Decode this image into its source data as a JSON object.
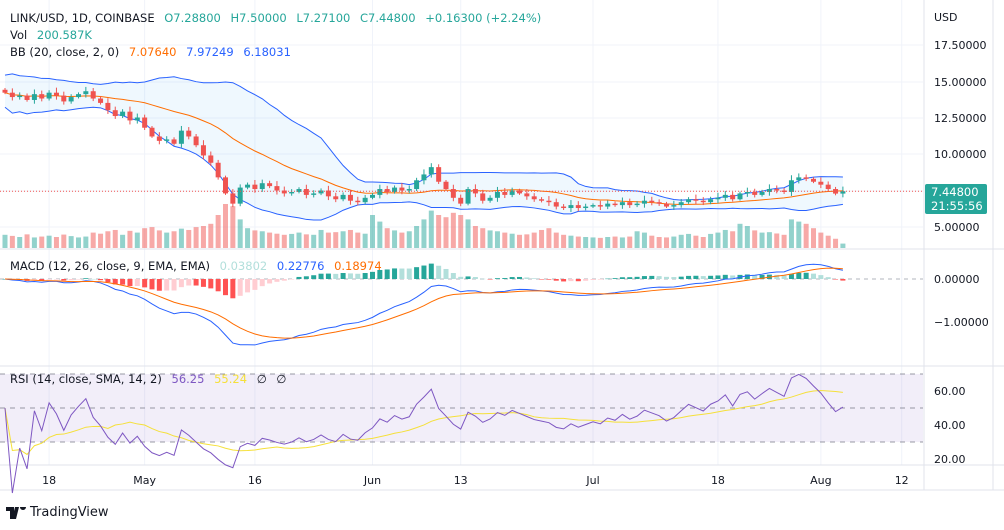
{
  "header": {
    "symbol": "LINK/USD, 1D, COINBASE",
    "open": "O7.28800",
    "high": "H7.50000",
    "low": "L7.27100",
    "close": "C7.44800",
    "change": "+0.16300 (+2.24%)"
  },
  "volume": {
    "label": "Vol",
    "value": "200.587K"
  },
  "bb": {
    "label": "BB (20, close, 2, 0)",
    "basis": "7.07640",
    "upper": "7.97249",
    "lower": "6.18031"
  },
  "macd": {
    "label": "MACD (12, 26, close, 9, EMA, EMA)",
    "hist": "0.03802",
    "macd": "0.22776",
    "signal": "0.18974"
  },
  "rsi": {
    "label": "RSI (14, close, SMA, 14, 2)",
    "rsi": "56.25",
    "sma": "55.24",
    "v3": "∅",
    "v4": "∅"
  },
  "price_axis": {
    "currency": "USD",
    "ticks": [
      "17.50000",
      "15.00000",
      "12.50000",
      "10.00000",
      "5.00000"
    ],
    "last_price": "7.44800",
    "countdown": "21:55:56"
  },
  "macd_axis": {
    "ticks": [
      "0.00000",
      "−1.00000"
    ]
  },
  "rsi_axis": {
    "ticks": [
      "60.00",
      "40.00",
      "20.00"
    ]
  },
  "time_axis": [
    {
      "label": "18",
      "candle": 6
    },
    {
      "label": "May",
      "candle": 19
    },
    {
      "label": "16",
      "candle": 34
    },
    {
      "label": "Jun",
      "candle": 50
    },
    {
      "label": "13",
      "candle": 62
    },
    {
      "label": "Jul",
      "candle": 80
    },
    {
      "label": "18",
      "candle": 97
    },
    {
      "label": "Aug",
      "candle": 111
    },
    {
      "label": "12",
      "candle": 122
    }
  ],
  "brand": "TradingView",
  "colors": {
    "up": "#26a69a",
    "down": "#ef5350",
    "bb_band": "#2962ff",
    "bb_basis": "#ff6d00",
    "macd": "#2962ff",
    "signal": "#ff6d00",
    "rsi": "#7e57c2",
    "rsi_sma": "#f5e03a"
  },
  "chart_data": {
    "type": "candlestick",
    "yrange": [
      4,
      19
    ],
    "closes": [
      14.2,
      13.9,
      14.0,
      13.7,
      14.1,
      13.8,
      14.2,
      14.0,
      13.6,
      13.9,
      14.1,
      14.3,
      13.8,
      13.5,
      13.0,
      12.6,
      12.9,
      12.3,
      12.5,
      11.8,
      11.2,
      10.9,
      11.0,
      10.7,
      11.6,
      11.2,
      10.6,
      9.9,
      9.4,
      8.4,
      7.3,
      6.6,
      7.7,
      7.9,
      7.6,
      8.0,
      7.8,
      7.5,
      7.3,
      7.4,
      7.6,
      7.2,
      7.3,
      7.5,
      7.1,
      6.9,
      7.2,
      6.8,
      6.7,
      7.0,
      7.2,
      7.6,
      7.4,
      7.7,
      7.5,
      7.6,
      8.2,
      8.6,
      9.1,
      8.1,
      7.6,
      7.0,
      6.6,
      7.6,
      7.3,
      6.8,
      7.0,
      7.4,
      7.2,
      7.5,
      7.3,
      7.1,
      6.9,
      6.8,
      6.7,
      6.4,
      6.3,
      6.5,
      6.3,
      6.4,
      6.5,
      6.4,
      6.6,
      6.5,
      6.7,
      6.5,
      6.6,
      6.8,
      6.7,
      6.6,
      6.4,
      6.5,
      6.7,
      6.9,
      6.8,
      6.7,
      6.9,
      7.0,
      7.2,
      6.9,
      7.3,
      7.4,
      7.2,
      7.4,
      7.6,
      7.5,
      7.4,
      8.2,
      8.4,
      8.3,
      8.1,
      7.9,
      7.6,
      7.288,
      7.448
    ],
    "volumes_k": [
      600,
      550,
      500,
      620,
      480,
      520,
      560,
      500,
      610,
      540,
      480,
      520,
      700,
      650,
      760,
      820,
      600,
      780,
      700,
      900,
      950,
      800,
      700,
      760,
      880,
      820,
      950,
      1000,
      1100,
      1500,
      2000,
      1900,
      1300,
      900,
      800,
      760,
      700,
      650,
      600,
      640,
      700,
      620,
      600,
      820,
      700,
      720,
      760,
      820,
      700,
      650,
      1500,
      1200,
      900,
      800,
      700,
      760,
      1000,
      1300,
      1700,
      1500,
      1400,
      1600,
      1500,
      1300,
      1000,
      900,
      800,
      760,
      700,
      650,
      600,
      620,
      700,
      820,
      900,
      700,
      600,
      560,
      520,
      500,
      480,
      460,
      500,
      520,
      480,
      520,
      760,
      700,
      560,
      500,
      480,
      520,
      600,
      640,
      560,
      500,
      640,
      700,
      820,
      760,
      1100,
      1000,
      800,
      700,
      720,
      660,
      600,
      1300,
      1200,
      1100,
      900,
      700,
      560,
      420,
      200.587
    ]
  }
}
